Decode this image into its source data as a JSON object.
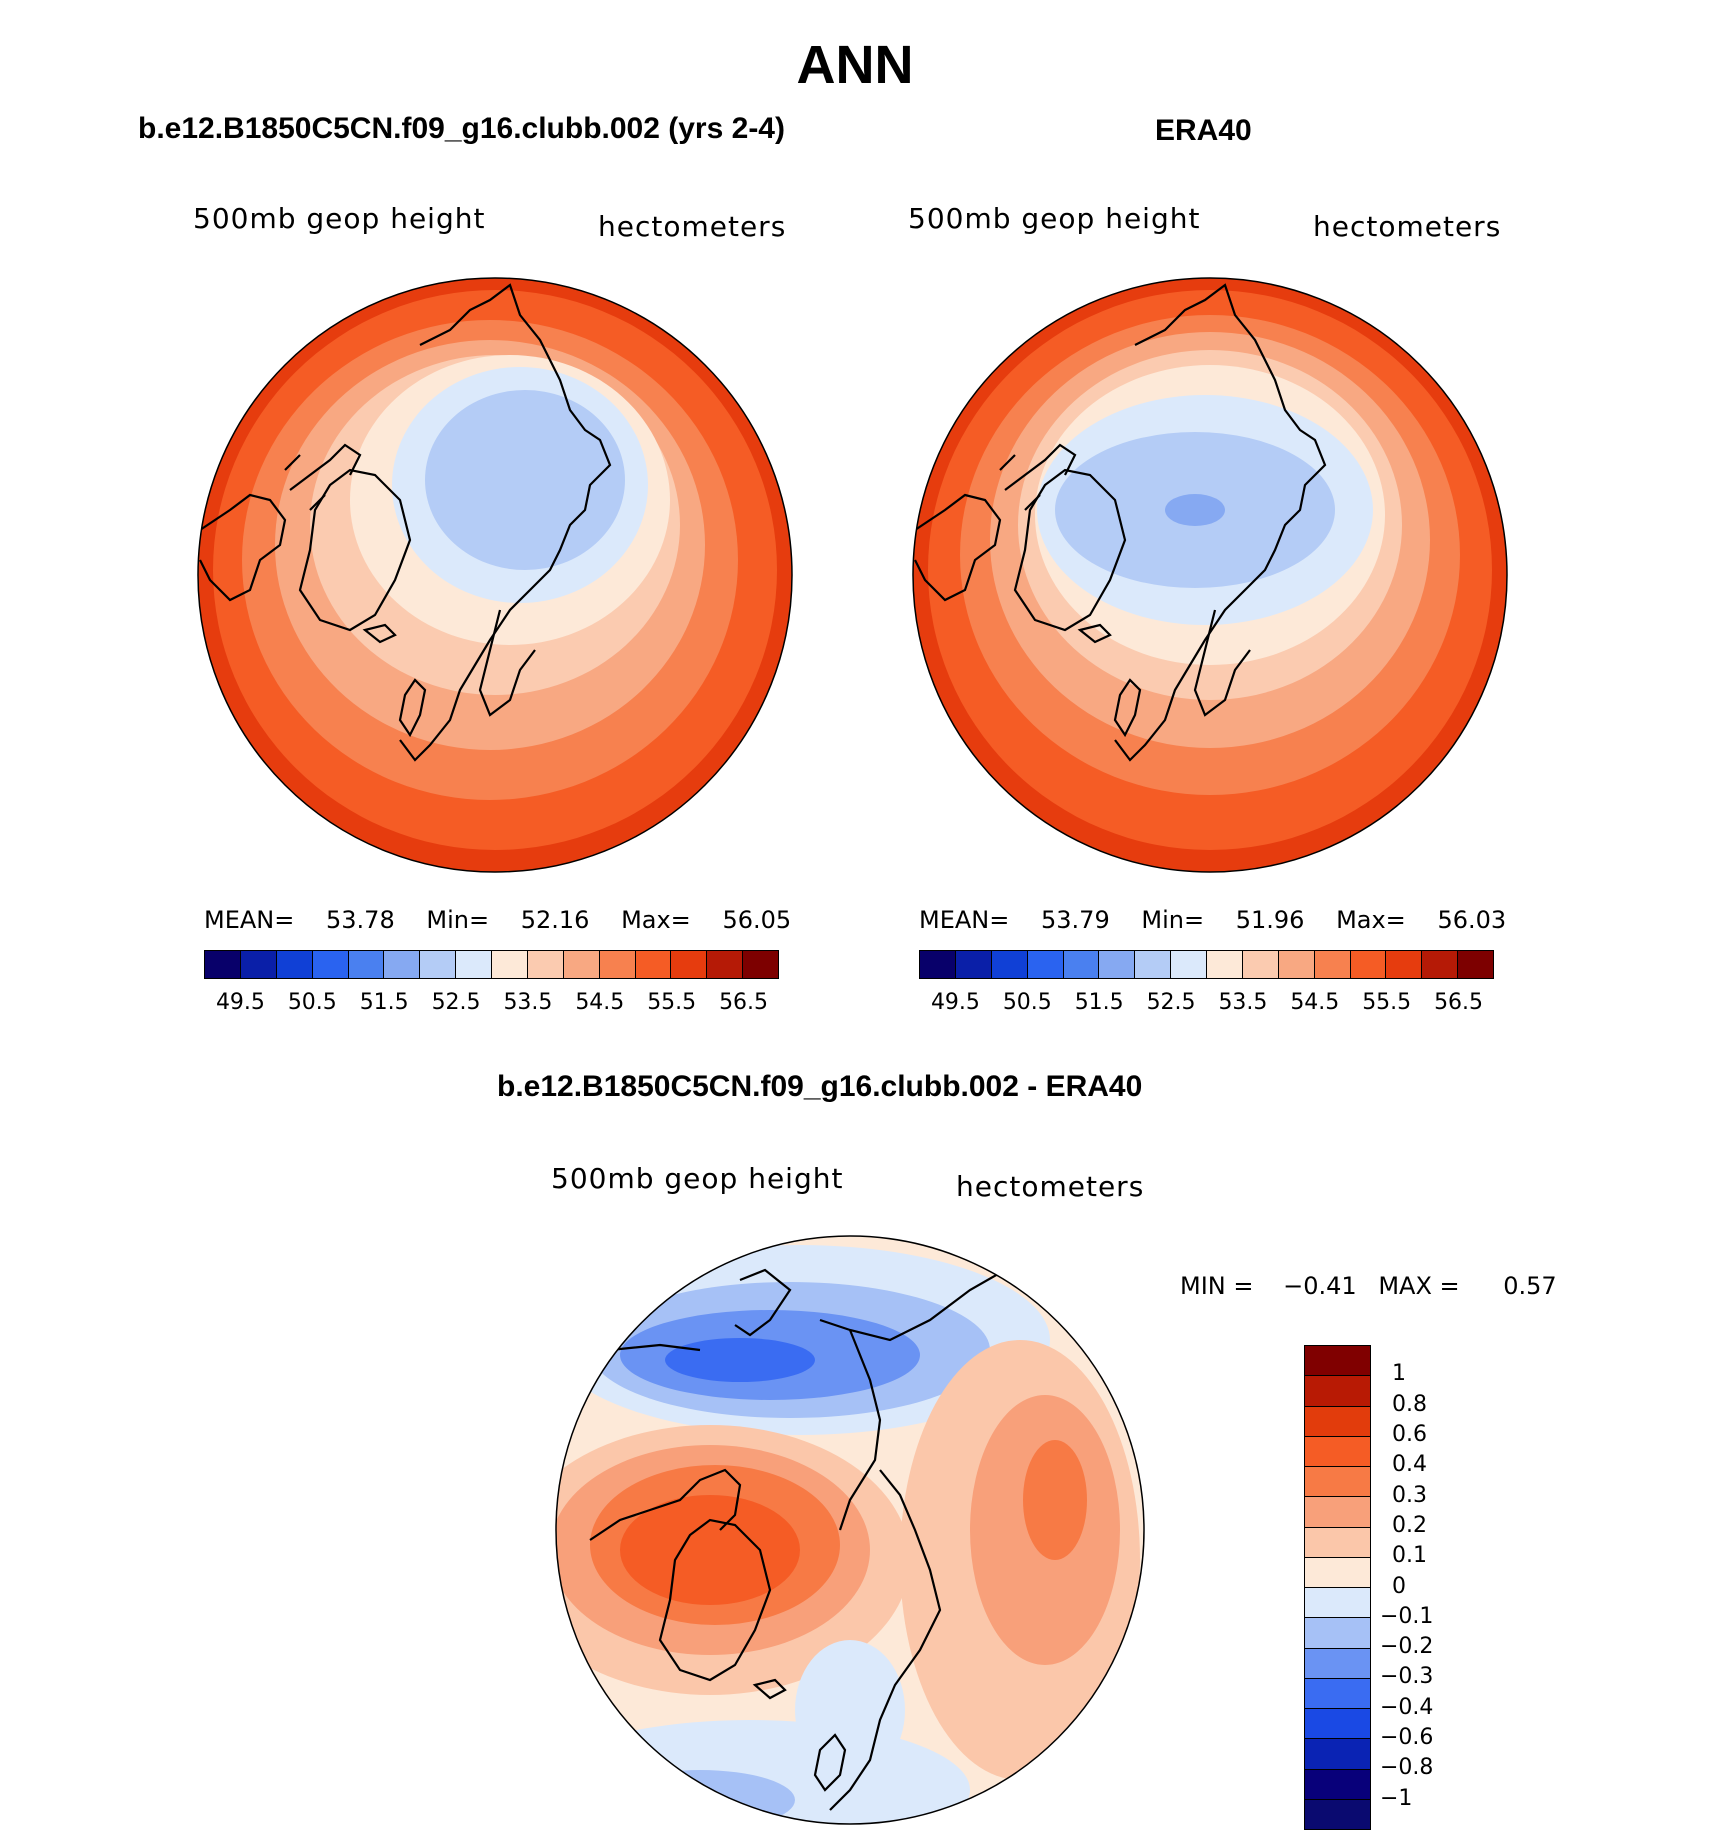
{
  "page_title": "ANN",
  "colors": {
    "abs_scale": [
      "#08006a",
      "#0a1fa8",
      "#1040d6",
      "#2a63f0",
      "#4a80f0",
      "#86a9f2",
      "#b4ccf6",
      "#dbe9fb",
      "#fde9d8",
      "#fbcbb0",
      "#f8a882",
      "#f7814f",
      "#f55c25",
      "#e63c0e",
      "#b51a06",
      "#7d0000"
    ],
    "diff_scale": [
      "#08007a",
      "#0a23b4",
      "#1a49e4",
      "#3a6cf2",
      "#6a93f3",
      "#a6c1f6",
      "#dbe9fb",
      "#fde9d8",
      "#fbc7aa",
      "#f8a07a",
      "#f77a45",
      "#f55c25",
      "#e23c0c",
      "#b81a04",
      "#800000"
    ]
  },
  "chart_data": [
    {
      "type": "heatmap",
      "projection": "north polar stereographic",
      "title": "b.e12.B1850C5CN.f09_g16.clubb.002 (yrs 2-4)",
      "left_label": "500mb geop height",
      "right_label": "hectometers",
      "stats": {
        "mean_label": "MEAN=",
        "mean": "53.78",
        "min_label": "Min=",
        "min": "52.16",
        "max_label": "Max=",
        "max": "56.05"
      },
      "levels": [
        49.5,
        50.0,
        50.5,
        51.0,
        51.5,
        52.0,
        52.5,
        53.0,
        53.5,
        54.0,
        54.5,
        55.0,
        55.5,
        56.0,
        56.5
      ],
      "tick_labels": [
        "49.5",
        "50.5",
        "51.5",
        "52.5",
        "53.5",
        "54.5",
        "55.5",
        "56.5"
      ]
    },
    {
      "type": "heatmap",
      "projection": "north polar stereographic",
      "title": "ERA40",
      "left_label": "500mb geop height",
      "right_label": "hectometers",
      "stats": {
        "mean_label": "MEAN=",
        "mean": "53.79",
        "min_label": "Min=",
        "min": "51.96",
        "max_label": "Max=",
        "max": "56.03"
      },
      "levels": [
        49.5,
        50.0,
        50.5,
        51.0,
        51.5,
        52.0,
        52.5,
        53.0,
        53.5,
        54.0,
        54.5,
        55.0,
        55.5,
        56.0,
        56.5
      ],
      "tick_labels": [
        "49.5",
        "50.5",
        "51.5",
        "52.5",
        "53.5",
        "54.5",
        "55.5",
        "56.5"
      ]
    },
    {
      "type": "heatmap",
      "projection": "north polar stereographic",
      "title": "b.e12.B1850C5CN.f09_g16.clubb.002 - ERA40",
      "left_label": "500mb geop height",
      "right_label": "hectometers",
      "stats": {
        "min_label": "MIN =",
        "min": "−0.41",
        "max_label": "MAX =",
        "max": "0.57"
      },
      "levels": [
        -1,
        -0.8,
        -0.6,
        -0.4,
        -0.3,
        -0.2,
        -0.1,
        0,
        0.1,
        0.2,
        0.3,
        0.4,
        0.6,
        0.8,
        1
      ],
      "tick_labels": [
        "1",
        "0.8",
        "0.6",
        "0.4",
        "0.3",
        "0.2",
        "0.1",
        "0",
        "−0.1",
        "−0.2",
        "−0.3",
        "−0.4",
        "−0.6",
        "−0.8",
        "−1"
      ]
    }
  ]
}
